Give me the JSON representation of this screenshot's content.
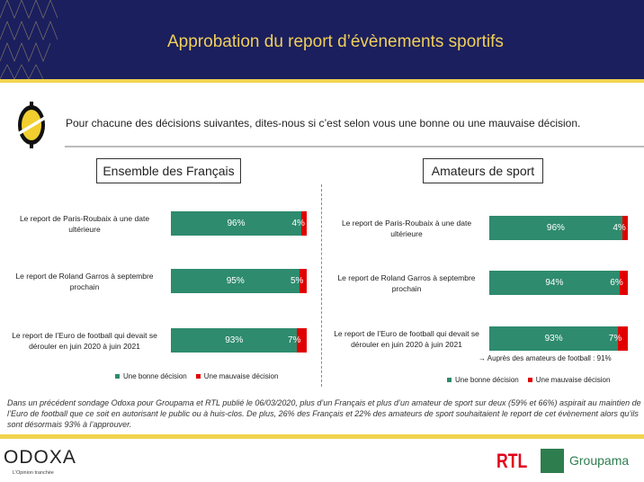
{
  "header": {
    "title": "Approbation du report d’évènements sportifs"
  },
  "question": "Pour chacune des décisions suivantes, dites-nous si c’est selon vous une bonne ou une mauvaise décision.",
  "colors": {
    "good": "#2e8b6e",
    "bad": "#e00000",
    "navy": "#1b1f5e",
    "yellow": "#f2d34f"
  },
  "chart_data": [
    {
      "type": "bar",
      "stacked": true,
      "orientation": "horizontal",
      "title": "Ensemble des Français",
      "categories": [
        "Le report de Paris-Roubaix à une date ultérieure",
        "Le report de Roland Garros à septembre prochain",
        "Le report de l’Euro de football qui devait se dérouler en juin 2020 à juin 2021"
      ],
      "series": [
        {
          "name": "Une bonne décision",
          "values": [
            96,
            95,
            93
          ],
          "labels": [
            "96%",
            "95%",
            "93%"
          ]
        },
        {
          "name": "Une mauvaise décision",
          "values": [
            4,
            5,
            7
          ],
          "labels": [
            "4%",
            "5%",
            "7%"
          ]
        }
      ],
      "legend": "bottom"
    },
    {
      "type": "bar",
      "stacked": true,
      "orientation": "horizontal",
      "title": "Amateurs de sport",
      "categories": [
        "Le report de Paris-Roubaix à une date ultérieure",
        "Le report de Roland Garros à septembre prochain",
        "Le report de l’Euro de football qui devait se dérouler en juin 2020 à juin 2021"
      ],
      "series": [
        {
          "name": "Une bonne décision",
          "values": [
            96,
            94,
            93
          ],
          "labels": [
            "96%",
            "94%",
            "93%"
          ]
        },
        {
          "name": "Une mauvaise décision",
          "values": [
            4,
            6,
            7
          ],
          "labels": [
            "4%",
            "6%",
            "7%"
          ]
        }
      ],
      "note": "→ Auprès des amateurs de football : 91%",
      "legend": "bottom"
    }
  ],
  "footnote": "Dans un précédent sondage Odoxa pour Groupama et RTL publié le 06/03/2020, plus d’un Français et plus d’un amateur de sport sur deux (59% et 66%) aspirait au maintien de l’Euro de football que ce soit en autorisant le public ou à huis-clos. De plus, 26% des Français et 22% des amateurs de sport souhaitaient le report de cet évènement alors qu’ils sont désormais 93% à l’approuver.",
  "logos": {
    "odoxa": "ODOXA",
    "odoxa_tagline": "L’Opinion tranchée",
    "rtl": "RTL",
    "groupama": "Groupama"
  }
}
